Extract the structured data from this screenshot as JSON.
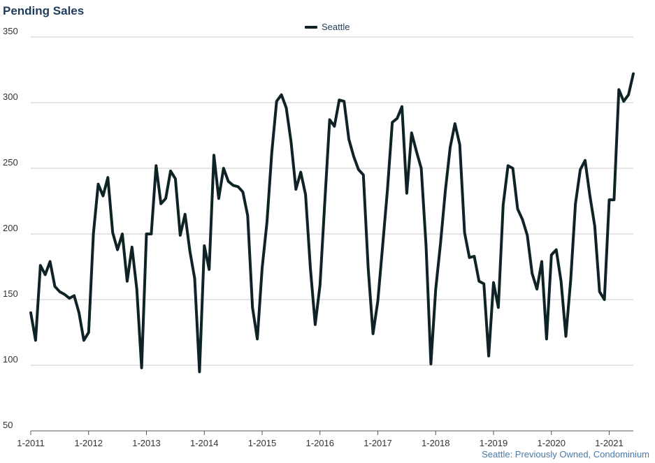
{
  "title": "Pending Sales",
  "source_note": "Seattle: Previously Owned, Condominium",
  "chart_data": {
    "type": "line",
    "title": "Pending Sales",
    "xlabel": "",
    "ylabel": "",
    "ylim": [
      50,
      350
    ],
    "yticks": [
      50,
      100,
      150,
      200,
      250,
      300,
      350
    ],
    "xticks": [
      "1-2011",
      "1-2012",
      "1-2013",
      "1-2014",
      "1-2015",
      "1-2016",
      "1-2017",
      "1-2018",
      "1-2019",
      "1-2020",
      "1-2021"
    ],
    "x_start": "1-2011",
    "x_end": "6-2021",
    "grid": "horizontal",
    "legend_position": "top-center",
    "series": [
      {
        "name": "Seattle",
        "color": "#0f2326",
        "values": [
          140,
          119,
          176,
          169,
          179,
          160,
          156,
          154,
          151,
          153,
          140,
          119,
          125,
          200,
          238,
          229,
          243,
          201,
          188,
          200,
          164,
          190,
          158,
          98,
          200,
          200,
          252,
          223,
          227,
          248,
          242,
          199,
          215,
          187,
          166,
          95,
          191,
          173,
          260,
          227,
          250,
          240,
          237,
          236,
          232,
          214,
          144,
          120,
          174,
          209,
          262,
          301,
          306,
          296,
          270,
          234,
          247,
          230,
          174,
          131,
          161,
          225,
          287,
          282,
          302,
          301,
          272,
          259,
          249,
          245,
          174,
          124,
          149,
          191,
          234,
          285,
          288,
          297,
          231,
          277,
          263,
          250,
          191,
          101,
          158,
          193,
          233,
          266,
          284,
          268,
          201,
          182,
          183,
          164,
          162,
          107,
          163,
          144,
          222,
          252,
          250,
          219,
          211,
          199,
          170,
          158,
          179,
          120,
          184,
          188,
          164,
          122,
          165,
          223,
          249,
          256,
          229,
          206,
          156,
          150,
          226,
          226,
          310,
          301,
          306,
          322
        ]
      }
    ]
  }
}
